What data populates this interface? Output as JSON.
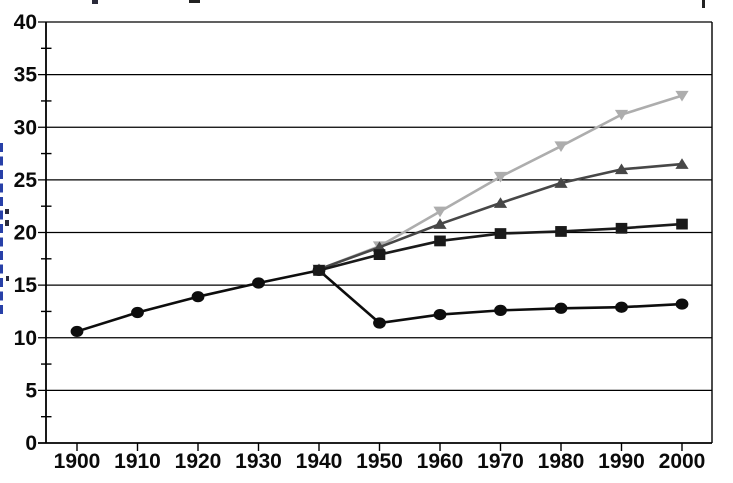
{
  "page": {
    "background_color": "#ffffff",
    "note_top": "cropped remnants of a title line are visible at the very top edge",
    "note_left": "cropped blue vertical y-axis title visible as fragments on the left edge"
  },
  "chart_data": {
    "type": "line",
    "title": "",
    "xlabel": "",
    "ylabel": "",
    "legend": "none",
    "grid": "horizontal-major",
    "xlim": [
      1900,
      2000
    ],
    "ylim": [
      0,
      40
    ],
    "x_tick_labels": [
      "1900",
      "1910",
      "1920",
      "1930",
      "1940",
      "1950",
      "1960",
      "1970",
      "1980",
      "1990",
      "2000"
    ],
    "y_major_ticks": [
      0,
      5,
      10,
      15,
      20,
      25,
      30,
      35,
      40
    ],
    "y_tick_labels": [
      "0",
      "5",
      "10",
      "15",
      "20",
      "25",
      "30",
      "35",
      "40"
    ],
    "y_minor_ticks": [
      2.5,
      7.5,
      12.5,
      17.5,
      22.5,
      27.5,
      32.5,
      37.5
    ],
    "series": [
      {
        "name": "triangle-down-light-gray",
        "marker": "triangle-down",
        "color": "#ADADAD",
        "x": [
          1940,
          1950,
          1960,
          1970,
          1980,
          1990,
          2000
        ],
        "values": [
          16.5,
          18.7,
          22.0,
          25.3,
          28.2,
          31.2,
          33.0
        ]
      },
      {
        "name": "triangle-up-dark-gray",
        "marker": "triangle-up",
        "color": "#474747",
        "x": [
          1940,
          1950,
          1960,
          1970,
          1980,
          1990,
          2000
        ],
        "values": [
          16.5,
          18.6,
          20.8,
          22.8,
          24.7,
          26.0,
          26.5
        ]
      },
      {
        "name": "circles-black",
        "marker": "circle",
        "color": "#0d0d0d",
        "x": [
          1900,
          1910,
          1920,
          1930,
          1940,
          1950,
          1960,
          1970,
          1980,
          1990,
          2000
        ],
        "values": [
          10.6,
          12.4,
          13.9,
          15.2,
          16.4,
          11.4,
          12.2,
          12.6,
          12.8,
          12.9,
          13.2
        ]
      },
      {
        "name": "squares-black",
        "marker": "square",
        "color": "#1a1a1a",
        "x": [
          1940,
          1950,
          1960,
          1970,
          1980,
          1990,
          2000
        ],
        "values": [
          16.4,
          17.9,
          19.2,
          19.9,
          20.1,
          20.4,
          20.8
        ]
      }
    ],
    "axis_color": "#000000",
    "gridline_color": "#000000"
  },
  "artifacts": {
    "y_axis_label_fragment_color": "#2840a8",
    "top_fragment_color": "#2a2a3a"
  }
}
